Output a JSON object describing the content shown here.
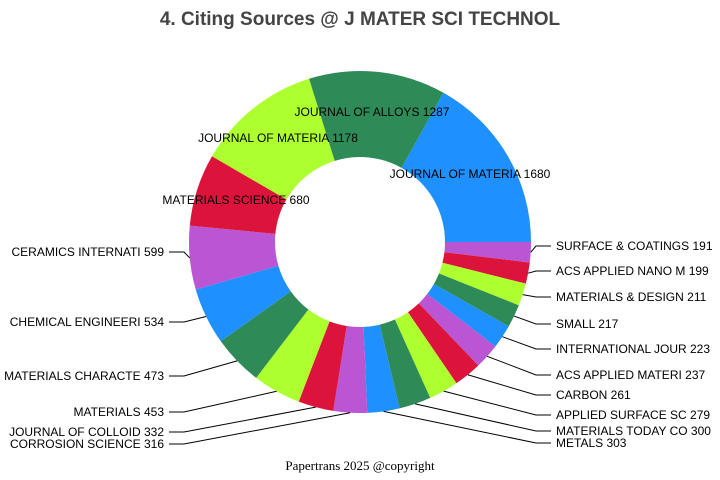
{
  "chart_data": {
    "type": "pie",
    "donut": true,
    "title": "4. Citing Sources @ J MATER SCI TECHNOL",
    "footer": "Papertrans 2025 @copyright",
    "slices": [
      {
        "label": "JOURNAL OF MATERIA",
        "value": 1680,
        "color": "#1E90FF"
      },
      {
        "label": "SURFACE & COATINGS",
        "value": 191,
        "color": "#BA55D3"
      },
      {
        "label": "ACS APPLIED NANO M",
        "value": 199,
        "color": "#DC143C"
      },
      {
        "label": "MATERIALS & DESIGN",
        "value": 211,
        "color": "#ADFF2F"
      },
      {
        "label": "SMALL",
        "value": 217,
        "color": "#2E8B57"
      },
      {
        "label": "INTERNATIONAL JOUR",
        "value": 223,
        "color": "#1E90FF"
      },
      {
        "label": "ACS APPLIED MATERI",
        "value": 237,
        "color": "#BA55D3"
      },
      {
        "label": "CARBON",
        "value": 261,
        "color": "#DC143C"
      },
      {
        "label": "APPLIED SURFACE SC",
        "value": 279,
        "color": "#ADFF2F"
      },
      {
        "label": "MATERIALS TODAY CO",
        "value": 300,
        "color": "#2E8B57"
      },
      {
        "label": "METALS",
        "value": 303,
        "color": "#1E90FF"
      },
      {
        "label": "CORROSION SCIENCE",
        "value": 316,
        "color": "#BA55D3"
      },
      {
        "label": "JOURNAL OF COLLOID",
        "value": 332,
        "color": "#DC143C"
      },
      {
        "label": "MATERIALS",
        "value": 453,
        "color": "#ADFF2F"
      },
      {
        "label": "MATERIALS CHARACTE",
        "value": 473,
        "color": "#2E8B57"
      },
      {
        "label": "CHEMICAL ENGINEERI",
        "value": 534,
        "color": "#1E90FF"
      },
      {
        "label": "CERAMICS INTERNATI",
        "value": 599,
        "color": "#BA55D3"
      },
      {
        "label": "MATERIALS SCIENCE ",
        "value": 680,
        "color": "#DC143C"
      },
      {
        "label": "JOURNAL OF MATERIA",
        "value": 1178,
        "color": "#ADFF2F"
      },
      {
        "label": "JOURNAL OF ALLOYS ",
        "value": 1287,
        "color": "#2E8B57"
      }
    ]
  }
}
